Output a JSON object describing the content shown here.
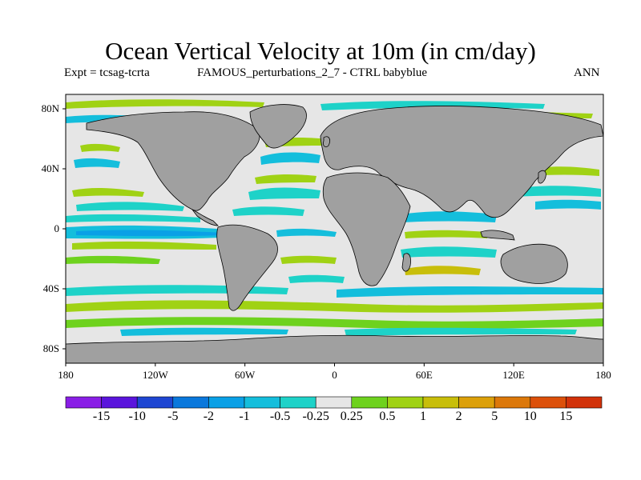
{
  "title": "Ocean Vertical Velocity at 10m (in cm/day)",
  "expt_label": "Expt = tcsag-tcrta",
  "run_label": "FAMOUS_perturbations_2_7 - CTRL babyblue",
  "season_label": "ANN",
  "lat_ticks": [
    "80N",
    "40N",
    "0",
    "40S",
    "80S"
  ],
  "lon_ticks": [
    "180",
    "120W",
    "60W",
    "0",
    "60E",
    "120E",
    "180"
  ],
  "colorbar": {
    "labels": [
      "-15",
      "-10",
      "-5",
      "-2",
      "-1",
      "-0.5",
      "-0.25",
      "0.25",
      "0.5",
      "1",
      "2",
      "5",
      "10",
      "15"
    ],
    "colors": [
      "#8a1ee6",
      "#5a14dc",
      "#1e46d2",
      "#0a78dc",
      "#0aa0e6",
      "#14bedc",
      "#1ed2c8",
      "#e6e6e6",
      "#6ed21e",
      "#a0d214",
      "#c8be0a",
      "#dca00a",
      "#dc780a",
      "#dc500a",
      "#d2320a"
    ]
  },
  "map_colors": {
    "land": "#a0a0a0",
    "neutral": "#e6e6e6",
    "coast": "#000000"
  }
}
